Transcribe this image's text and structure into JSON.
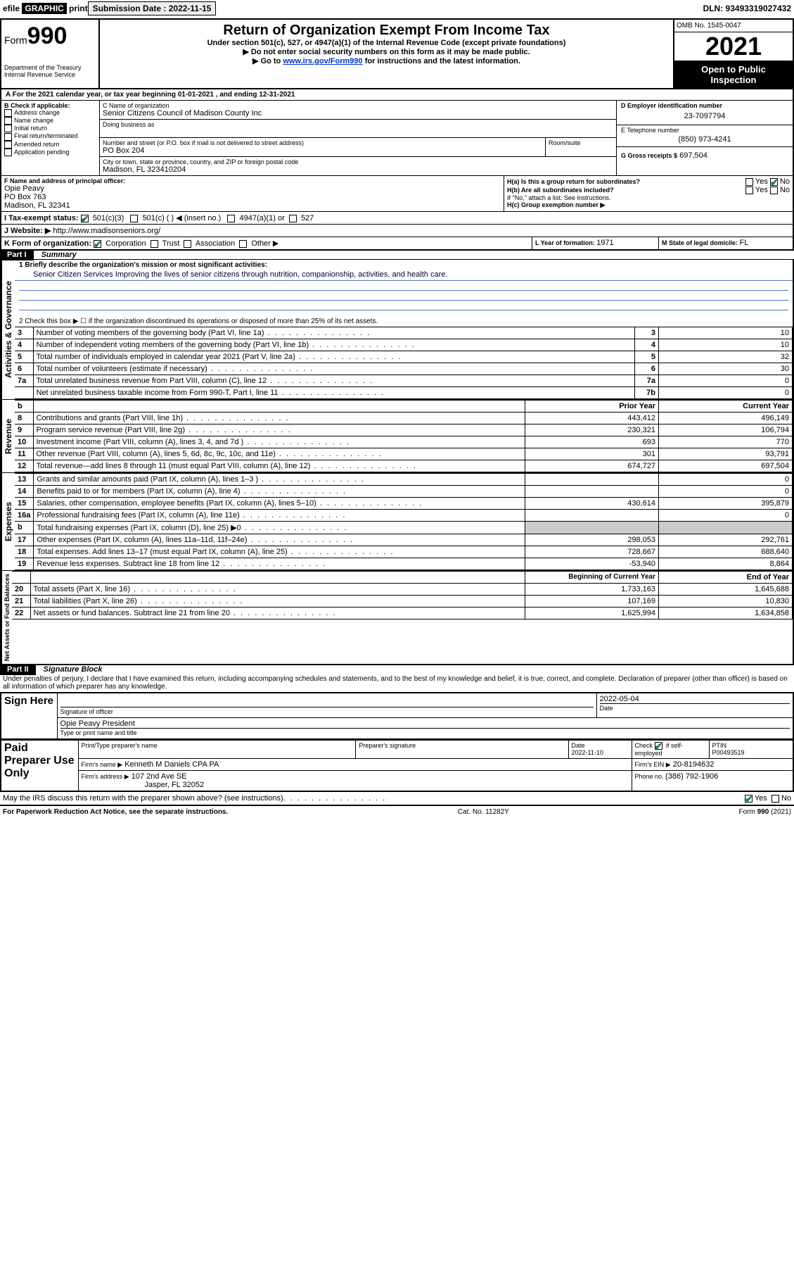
{
  "header": {
    "efile_prefix": "efile ",
    "efile_graphic": "GRAPHIC",
    "print_btn": " print",
    "sub_label": "Submission Date : 2022-11-15",
    "dln": "DLN: 93493319027432"
  },
  "formhead": {
    "form_word": "Form",
    "form_num": "990",
    "dept": "Department of the Treasury",
    "irs": "Internal Revenue Service",
    "title": "Return of Organization Exempt From Income Tax",
    "subtitle": "Under section 501(c), 527, or 4947(a)(1) of the Internal Revenue Code (except private foundations)",
    "note1": "Do not enter social security numbers on this form as it may be made public.",
    "note2_pre": "Go to ",
    "note2_link": "www.irs.gov/Form990",
    "note2_post": " for instructions and the latest information.",
    "omb": "OMB No. 1545-0047",
    "year": "2021",
    "public1": "Open to Public",
    "public2": "Inspection"
  },
  "sectionA": {
    "a_line": "A For the 2021 calendar year, or tax year beginning 01-01-2021   , and ending 12-31-2021",
    "b_label": "B Check if applicable:",
    "b_items": [
      "Address change",
      "Name change",
      "Initial return",
      "Final return/terminated",
      "Amended return",
      "Application pending"
    ],
    "c_label": "C Name of organization",
    "c_name": "Senior Citizens Council of Madison County Inc",
    "dba_label": "Doing business as",
    "street_label": "Number and street (or P.O. box if mail is not delivered to street address)",
    "room_label": "Room/suite",
    "street": "PO Box 204",
    "city_label": "City or town, state or province, country, and ZIP or foreign postal code",
    "city": "Madison, FL  323410204",
    "d_label": "D Employer identification number",
    "d_ein": "23-7097794",
    "e_label": "E Telephone number",
    "e_phone": "(850) 973-4241",
    "g_label": "G Gross receipts $",
    "g_val": "697,504",
    "f_label": "F Name and address of principal officer:",
    "f_name": "Opie Peavy",
    "f_addr1": "PO Box 763",
    "f_addr2": "Madison, FL  32341",
    "ha": "H(a)  Is this a group return for subordinates?",
    "hb": "H(b)  Are all subordinates included?",
    "h_note": "If \"No,\" attach a list. See instructions.",
    "hc": "H(c)  Group exemption number ▶",
    "yes": "Yes",
    "no": "No",
    "i_label": "I   Tax-exempt status:",
    "i_501c3": "501(c)(3)",
    "i_501c": "501(c) (  ) ◀ (insert no.)",
    "i_4947": "4947(a)(1) or",
    "i_527": "527",
    "j_label": "J   Website: ▶ ",
    "j_url": "http://www.madisonseniors.org/",
    "k_label": "K Form of organization:",
    "k_corp": "Corporation",
    "k_trust": "Trust",
    "k_assoc": "Association",
    "k_other": "Other ▶",
    "l_label": "L Year of formation: ",
    "l_val": "1971",
    "m_label": "M State of legal domicile: ",
    "m_val": "FL"
  },
  "part1": {
    "label": "Part I",
    "title": "Summary",
    "q1_label": "1   Briefly describe the organization's mission or most significant activities:",
    "q1_text": "Senior Citizen Services Improving the lives of senior citizens through nutrition, companionship, activities, and health care.",
    "q2": "2   Check this box ▶ ☐  if the organization discontinued its operations or disposed of more than 25% of its net assets.",
    "rows_gov": [
      {
        "n": "3",
        "t": "Number of voting members of the governing body (Part VI, line 1a)",
        "k": "3",
        "v": "10"
      },
      {
        "n": "4",
        "t": "Number of independent voting members of the governing body (Part VI, line 1b)",
        "k": "4",
        "v": "10"
      },
      {
        "n": "5",
        "t": "Total number of individuals employed in calendar year 2021 (Part V, line 2a)",
        "k": "5",
        "v": "32"
      },
      {
        "n": "6",
        "t": "Total number of volunteers (estimate if necessary)",
        "k": "6",
        "v": "30"
      },
      {
        "n": "7a",
        "t": "Total unrelated business revenue from Part VIII, column (C), line 12",
        "k": "7a",
        "v": "0"
      },
      {
        "n": "",
        "t": "Net unrelated business taxable income from Form 990-T, Part I, line 11",
        "k": "7b",
        "v": "0"
      }
    ],
    "col_prior": "Prior Year",
    "col_current": "Current Year",
    "rev_rows": [
      {
        "n": "8",
        "t": "Contributions and grants (Part VIII, line 1h)",
        "p": "443,412",
        "c": "496,149"
      },
      {
        "n": "9",
        "t": "Program service revenue (Part VIII, line 2g)",
        "p": "230,321",
        "c": "106,794"
      },
      {
        "n": "10",
        "t": "Investment income (Part VIII, column (A), lines 3, 4, and 7d )",
        "p": "693",
        "c": "770"
      },
      {
        "n": "11",
        "t": "Other revenue (Part VIII, column (A), lines 5, 6d, 8c, 9c, 10c, and 11e)",
        "p": "301",
        "c": "93,791"
      },
      {
        "n": "12",
        "t": "Total revenue—add lines 8 through 11 (must equal Part VIII, column (A), line 12)",
        "p": "674,727",
        "c": "697,504"
      }
    ],
    "exp_rows": [
      {
        "n": "13",
        "t": "Grants and similar amounts paid (Part IX, column (A), lines 1–3 )",
        "p": "",
        "c": "0"
      },
      {
        "n": "14",
        "t": "Benefits paid to or for members (Part IX, column (A), line 4)",
        "p": "",
        "c": "0"
      },
      {
        "n": "15",
        "t": "Salaries, other compensation, employee benefits (Part IX, column (A), lines 5–10)",
        "p": "430,614",
        "c": "395,879"
      },
      {
        "n": "16a",
        "t": "Professional fundraising fees (Part IX, column (A), line 11e)",
        "p": "",
        "c": "0"
      },
      {
        "n": "b",
        "t": "Total fundraising expenses (Part IX, column (D), line 25) ▶0",
        "p": "GRAY",
        "c": "GRAY"
      },
      {
        "n": "17",
        "t": "Other expenses (Part IX, column (A), lines 11a–11d, 11f–24e)",
        "p": "298,053",
        "c": "292,761"
      },
      {
        "n": "18",
        "t": "Total expenses. Add lines 13–17 (must equal Part IX, column (A), line 25)",
        "p": "728,667",
        "c": "688,640"
      },
      {
        "n": "19",
        "t": "Revenue less expenses. Subtract line 18 from line 12",
        "p": "-53,940",
        "c": "8,864"
      }
    ],
    "col_begin": "Beginning of Current Year",
    "col_end": "End of Year",
    "net_rows": [
      {
        "n": "20",
        "t": "Total assets (Part X, line 16)",
        "p": "1,733,163",
        "c": "1,645,688"
      },
      {
        "n": "21",
        "t": "Total liabilities (Part X, line 26)",
        "p": "107,169",
        "c": "10,830"
      },
      {
        "n": "22",
        "t": "Net assets or fund balances. Subtract line 21 from line 20",
        "p": "1,625,994",
        "c": "1,634,858"
      }
    ],
    "v_gov": "Activities & Governance",
    "v_rev": "Revenue",
    "v_exp": "Expenses",
    "v_net": "Net Assets or Fund Balances"
  },
  "part2": {
    "label": "Part II",
    "title": "Signature Block",
    "decl": "Under penalties of perjury, I declare that I have examined this return, including accompanying schedules and statements, and to the best of my knowledge and belief, it is true, correct, and complete. Declaration of preparer (other than officer) is based on all information of which preparer has any knowledge.",
    "sign_here": "Sign Here",
    "sig_officer": "Signature of officer",
    "sig_date": "2022-05-04",
    "date_lbl": "Date",
    "officer_name": "Opie Peavy President",
    "officer_note": "Type or print name and title",
    "paid": "Paid Preparer Use Only",
    "prep_name_lbl": "Print/Type preparer's name",
    "prep_sig_lbl": "Preparer's signature",
    "prep_date_lbl": "Date",
    "prep_date": "2022-11-10",
    "self_emp": "Check ☑ if self-employed",
    "ptin_lbl": "PTIN",
    "ptin": "P00493519",
    "firm_name_lbl": "Firm's name   ▶",
    "firm_name": "Kenneth M Daniels CPA PA",
    "firm_ein_lbl": "Firm's EIN ▶",
    "firm_ein": "20-8194632",
    "firm_addr_lbl": "Firm's address ▶",
    "firm_addr1": "107 2nd Ave SE",
    "firm_addr2": "Jasper, FL  32052",
    "phone_lbl": "Phone no. ",
    "phone": "(386) 792-1906",
    "may_irs": "May the IRS discuss this return with the preparer shown above? (see instructions)",
    "paperwork": "For Paperwork Reduction Act Notice, see the separate instructions.",
    "catno": "Cat. No. 11282Y",
    "form_foot": "Form 990 (2021)"
  }
}
